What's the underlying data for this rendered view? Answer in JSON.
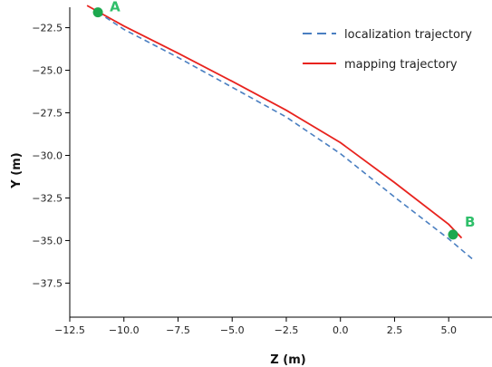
{
  "chart_data": {
    "type": "line",
    "xlabel": "Z (m)",
    "ylabel": "Y (m)",
    "xlim": [
      -12.5,
      7.0
    ],
    "ylim": [
      -39.5,
      -21.3
    ],
    "x_ticks": [
      -12.5,
      -10.0,
      -7.5,
      -5.0,
      -2.5,
      0.0,
      2.5,
      5.0
    ],
    "x_tick_labels": [
      "−12.5",
      "−10.0",
      "−7.5",
      "−5.0",
      "−2.5",
      "0.0",
      "2.5",
      "5.0"
    ],
    "y_ticks": [
      -22.5,
      -25.0,
      -27.5,
      -30.0,
      -32.5,
      -35.0,
      -37.5
    ],
    "y_tick_labels": [
      "−22.5",
      "−25.0",
      "−27.5",
      "−30.0",
      "−32.5",
      "−35.0",
      "−37.5"
    ],
    "grid": false,
    "legend_position": "top-right",
    "series": [
      {
        "name": "localization trajectory",
        "style": "dashed",
        "color": "#4a7fc1",
        "x": [
          -11.2,
          -10.0,
          -7.5,
          -5.0,
          -2.5,
          0.0,
          2.5,
          5.0,
          6.2
        ],
        "y": [
          -21.6,
          -22.6,
          -24.25,
          -26.0,
          -27.75,
          -29.9,
          -32.45,
          -34.9,
          -36.2
        ]
      },
      {
        "name": "mapping trajectory",
        "style": "solid",
        "color": "#e8231e",
        "x": [
          -11.7,
          -10.0,
          -7.5,
          -5.0,
          -2.5,
          0.0,
          2.5,
          5.0,
          5.6
        ],
        "y": [
          -21.2,
          -22.4,
          -24.0,
          -25.65,
          -27.35,
          -29.25,
          -31.6,
          -34.05,
          -34.85
        ]
      }
    ],
    "annotations": [
      {
        "label": "A",
        "x": -11.2,
        "y": -21.6,
        "color": "#1ca84e"
      },
      {
        "label": "B",
        "x": 5.2,
        "y": -34.65,
        "color": "#1ca84e"
      }
    ]
  }
}
